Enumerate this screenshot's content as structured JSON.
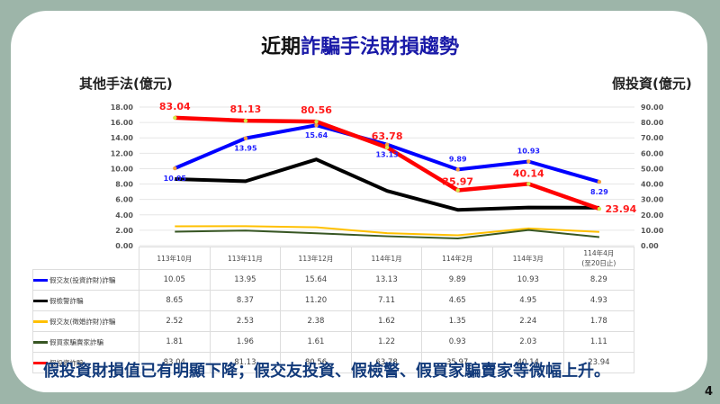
{
  "title_black": "近期",
  "title_blue": "詐騙手法財損趨勢",
  "left_axis_title": "其他手法(億元)",
  "right_axis_title": "假投資(億元)",
  "footer": "假投資財損值已有明顯下降；假交友投資、假檢警、假買家騙賣家等微幅上升。",
  "page_number": "4",
  "chart_data": {
    "type": "line",
    "categories": [
      "113年10月",
      "113年11月",
      "113年12月",
      "114年1月",
      "114年2月",
      "114年3月",
      "114年4月"
    ],
    "category_notes": [
      "",
      "",
      "",
      "",
      "",
      "",
      "(至20日止)"
    ],
    "left_axis": {
      "range": [
        0,
        18
      ],
      "step": 2,
      "ticks": [
        "0.00",
        "2.00",
        "4.00",
        "6.00",
        "8.00",
        "10.00",
        "12.00",
        "14.00",
        "16.00",
        "18.00"
      ]
    },
    "right_axis": {
      "range": [
        0,
        90
      ],
      "step": 10,
      "ticks": [
        "0.00",
        "10.00",
        "20.00",
        "30.00",
        "40.00",
        "50.00",
        "60.00",
        "70.00",
        "80.00",
        "90.00"
      ]
    },
    "series": [
      {
        "name": "假交友(投資詐財)詐騙",
        "axis": "left",
        "color": "#0000ff",
        "labels": true,
        "values": [
          10.05,
          13.95,
          15.64,
          13.13,
          9.89,
          10.93,
          8.29
        ],
        "display": [
          "10.05",
          "13.95",
          "15.64",
          "13.13",
          "9.89",
          "10.93",
          "8.29"
        ]
      },
      {
        "name": "假檢警詐騙",
        "axis": "left",
        "color": "#000000",
        "values": [
          8.65,
          8.37,
          11.2,
          7.11,
          4.65,
          4.95,
          4.93
        ],
        "display": [
          "8.65",
          "8.37",
          "11.20",
          "7.11",
          "4.65",
          "4.95",
          "4.93"
        ]
      },
      {
        "name": "假交友(徵婚詐財)詐騙",
        "axis": "left",
        "color": "#ffc000",
        "values": [
          2.52,
          2.53,
          2.38,
          1.62,
          1.35,
          2.24,
          1.78
        ],
        "display": [
          "2.52",
          "2.53",
          "2.38",
          "1.62",
          "1.35",
          "2.24",
          "1.78"
        ]
      },
      {
        "name": "假買家騙賣家詐騙",
        "axis": "left",
        "color": "#375623",
        "values": [
          1.81,
          1.96,
          1.61,
          1.22,
          0.93,
          2.03,
          1.11
        ],
        "display": [
          "1.81",
          "1.96",
          "1.61",
          "1.22",
          "0.93",
          "2.03",
          "1.11"
        ]
      },
      {
        "name": "假投資詐騙",
        "axis": "right",
        "color": "#ff0000",
        "labels": true,
        "values": [
          83.04,
          81.13,
          80.56,
          63.78,
          35.97,
          40.14,
          23.94
        ],
        "display": [
          "83.04",
          "81.13",
          "80.56",
          "63.78",
          "35.97",
          "40.14",
          "23.94"
        ]
      }
    ]
  }
}
